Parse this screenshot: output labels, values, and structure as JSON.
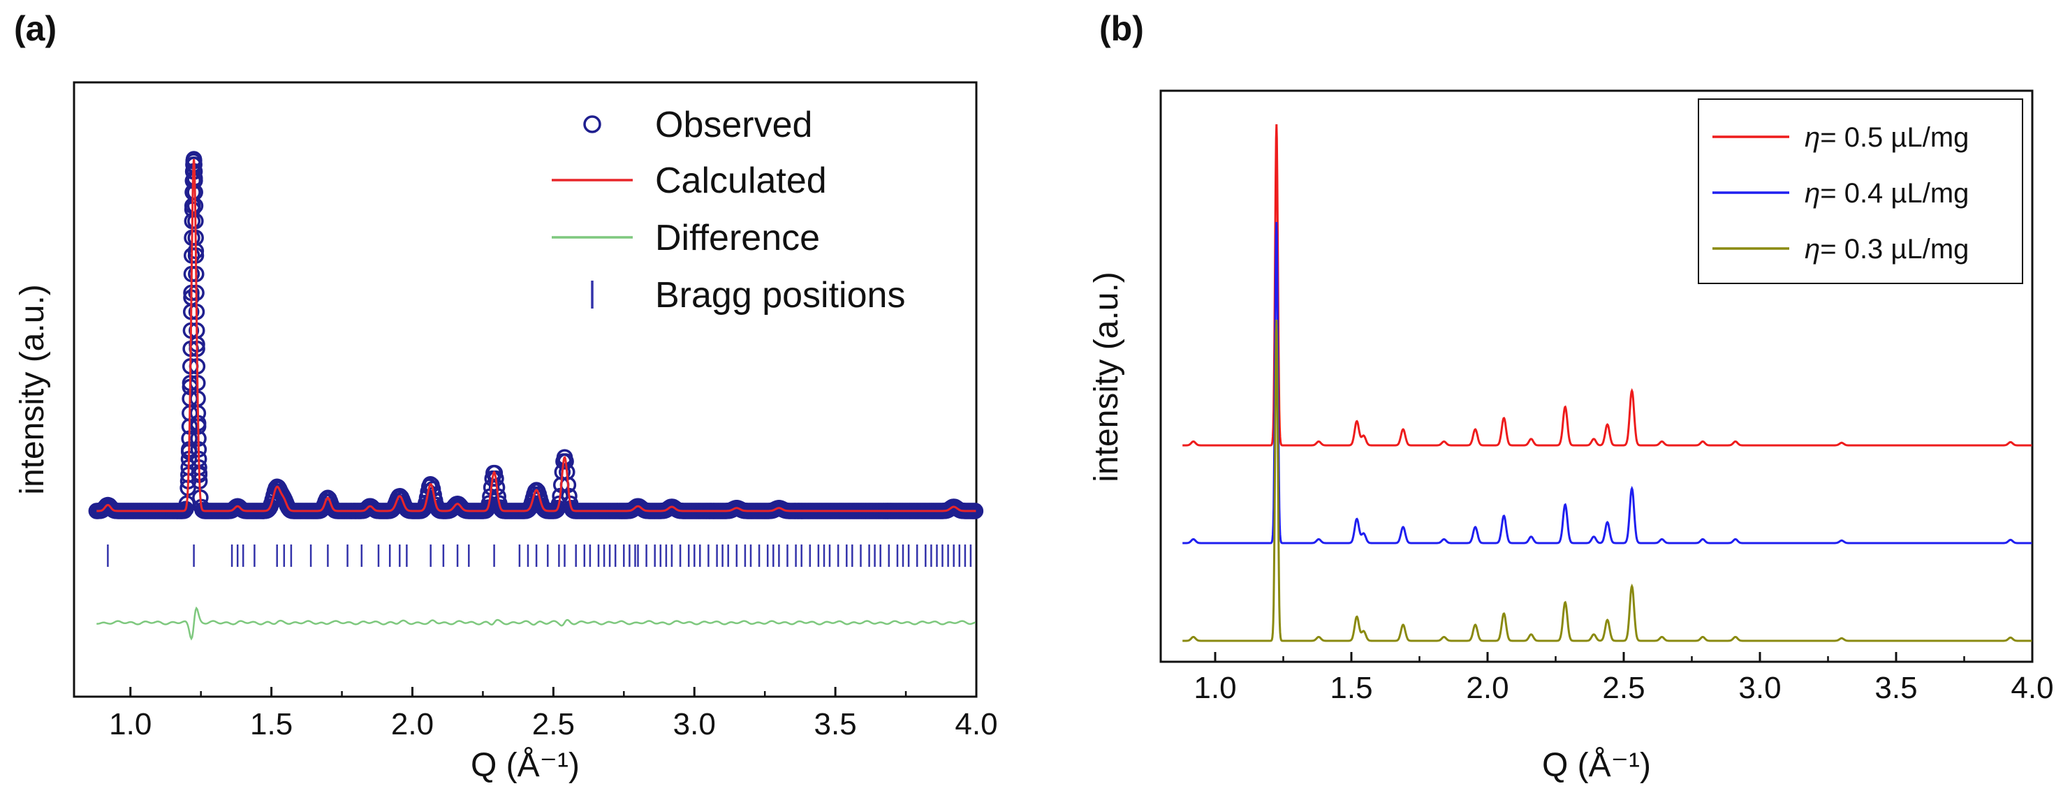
{
  "chart_data": [
    {
      "panel": "(a)",
      "type": "line",
      "title": "",
      "xlabel": "Q (Å⁻¹)",
      "ylabel": "intensity (a.u.)",
      "xlim": [
        0.8,
        4.0
      ],
      "ylim": [
        0,
        1
      ],
      "xticks": [
        "1.0",
        "1.5",
        "2.0",
        "2.5",
        "3.0",
        "3.5",
        "4.0"
      ],
      "xtick_values": [
        1.0,
        1.5,
        2.0,
        2.5,
        3.0,
        3.5,
        4.0
      ],
      "legend_position": "top-right",
      "baseline": 0.35,
      "peaks": [
        {
          "q": 0.92,
          "h": 0.01,
          "w": 0.01
        },
        {
          "q": 1.225,
          "h": 0.59,
          "w": 0.009
        },
        {
          "q": 1.38,
          "h": 0.008,
          "w": 0.01
        },
        {
          "q": 1.52,
          "h": 0.04,
          "w": 0.013
        },
        {
          "q": 1.545,
          "h": 0.015,
          "w": 0.01
        },
        {
          "q": 1.7,
          "h": 0.022,
          "w": 0.01
        },
        {
          "q": 1.85,
          "h": 0.008,
          "w": 0.01
        },
        {
          "q": 1.955,
          "h": 0.025,
          "w": 0.012
        },
        {
          "q": 2.065,
          "h": 0.045,
          "w": 0.011
        },
        {
          "q": 2.16,
          "h": 0.012,
          "w": 0.012
        },
        {
          "q": 2.29,
          "h": 0.065,
          "w": 0.01
        },
        {
          "q": 2.44,
          "h": 0.035,
          "w": 0.012
        },
        {
          "q": 2.54,
          "h": 0.09,
          "w": 0.01
        },
        {
          "q": 2.8,
          "h": 0.008,
          "w": 0.012
        },
        {
          "q": 2.92,
          "h": 0.007,
          "w": 0.012
        },
        {
          "q": 3.15,
          "h": 0.005,
          "w": 0.012
        },
        {
          "q": 3.3,
          "h": 0.005,
          "w": 0.012
        },
        {
          "q": 3.92,
          "h": 0.007,
          "w": 0.012
        }
      ],
      "bragg_positions": [
        0.92,
        1.225,
        1.36,
        1.38,
        1.4,
        1.44,
        1.52,
        1.545,
        1.57,
        1.64,
        1.7,
        1.77,
        1.82,
        1.88,
        1.92,
        1.955,
        1.98,
        2.065,
        2.11,
        2.16,
        2.2,
        2.29,
        2.38,
        2.41,
        2.44,
        2.48,
        2.52,
        2.54,
        2.58,
        2.61,
        2.63,
        2.66,
        2.68,
        2.7,
        2.72,
        2.75,
        2.77,
        2.79,
        2.8,
        2.83,
        2.86,
        2.88,
        2.9,
        2.92,
        2.95,
        2.98,
        3.0,
        3.02,
        3.05,
        3.08,
        3.1,
        3.12,
        3.15,
        3.18,
        3.2,
        3.23,
        3.26,
        3.28,
        3.3,
        3.33,
        3.36,
        3.38,
        3.41,
        3.44,
        3.46,
        3.48,
        3.51,
        3.54,
        3.56,
        3.59,
        3.62,
        3.64,
        3.66,
        3.69,
        3.72,
        3.74,
        3.76,
        3.79,
        3.82,
        3.84,
        3.86,
        3.88,
        3.9,
        3.92,
        3.94,
        3.96,
        3.98
      ],
      "series": [
        {
          "name": "Observed",
          "color": "#1f1f8f",
          "marker": "open-circle"
        },
        {
          "name": "Calculated",
          "color": "#e8262a",
          "marker": "line"
        },
        {
          "name": "Difference",
          "color": "#7ec87e",
          "marker": "line"
        },
        {
          "name": "Bragg positions",
          "color": "#3333aa",
          "marker": "vertical-tick"
        }
      ]
    },
    {
      "panel": "(b)",
      "type": "line",
      "title": "",
      "xlabel": "Q (Å⁻¹)",
      "ylabel": "intensity (a.u.)",
      "xlim": [
        0.8,
        4.0
      ],
      "xticks": [
        "1.0",
        "1.5",
        "2.0",
        "2.5",
        "3.0",
        "3.5",
        "4.0"
      ],
      "xtick_values": [
        1.0,
        1.5,
        2.0,
        2.5,
        3.0,
        3.5,
        4.0
      ],
      "legend_position": "top-right",
      "peaks": [
        {
          "q": 0.92,
          "h": 0.012
        },
        {
          "q": 1.225,
          "h": 1.0
        },
        {
          "q": 1.38,
          "h": 0.012
        },
        {
          "q": 1.52,
          "h": 0.075
        },
        {
          "q": 1.545,
          "h": 0.03
        },
        {
          "q": 1.69,
          "h": 0.05
        },
        {
          "q": 1.84,
          "h": 0.012
        },
        {
          "q": 1.955,
          "h": 0.05
        },
        {
          "q": 2.06,
          "h": 0.085
        },
        {
          "q": 2.16,
          "h": 0.02
        },
        {
          "q": 2.285,
          "h": 0.12
        },
        {
          "q": 2.39,
          "h": 0.02
        },
        {
          "q": 2.44,
          "h": 0.065
        },
        {
          "q": 2.53,
          "h": 0.17
        },
        {
          "q": 2.64,
          "h": 0.012
        },
        {
          "q": 2.79,
          "h": 0.012
        },
        {
          "q": 2.91,
          "h": 0.012
        },
        {
          "q": 3.3,
          "h": 0.008
        },
        {
          "q": 3.92,
          "h": 0.01
        }
      ],
      "series": [
        {
          "name": "η= 0.5 µL/mg",
          "eta_symbol": "η",
          "label_rest": "= 0.5 µL/mg",
          "color": "#ee1c1c",
          "offset": 0.5,
          "peak_scale": 1.0
        },
        {
          "name": "η= 0.4 µL/mg",
          "eta_symbol": "η",
          "label_rest": "= 0.4 µL/mg",
          "color": "#1f1ff0",
          "offset": 0.25,
          "peak_scale": 1.0
        },
        {
          "name": "η= 0.3 µL/mg",
          "eta_symbol": "η",
          "label_rest": "= 0.3 µL/mg",
          "color": "#8a8a10",
          "offset": 0.0,
          "peak_scale": 1.0
        }
      ]
    }
  ]
}
